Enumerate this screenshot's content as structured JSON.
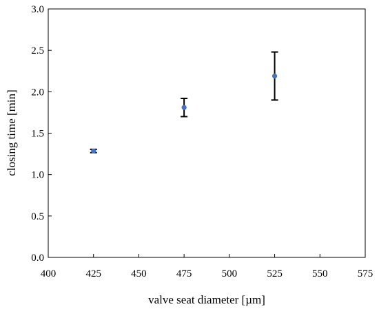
{
  "chart_data": {
    "type": "scatter",
    "title": "",
    "xlabel": "valve seat diameter [µm]",
    "ylabel": "closing time [min]",
    "xlim": [
      400,
      575
    ],
    "ylim": [
      0,
      3.0
    ],
    "xticks": [
      400,
      425,
      450,
      475,
      500,
      525,
      550,
      575
    ],
    "yticks": [
      0.0,
      0.5,
      1.0,
      1.5,
      2.0,
      2.5,
      3.0
    ],
    "xtick_labels": [
      "400",
      "425",
      "450",
      "475",
      "500",
      "525",
      "550",
      "575"
    ],
    "ytick_labels": [
      "0.0",
      "0.5",
      "1.0",
      "1.5",
      "2.0",
      "2.5",
      "3.0"
    ],
    "grid": false,
    "legend": "none",
    "series": [
      {
        "points": [
          {
            "x": 425,
            "y": 1.285,
            "err_low": 1.265,
            "err_high": 1.305
          },
          {
            "x": 475,
            "y": 1.81,
            "err_low": 1.7,
            "err_high": 1.92
          },
          {
            "x": 525,
            "y": 2.19,
            "err_low": 1.9,
            "err_high": 2.48
          }
        ],
        "color": "#4472C4",
        "error_bar_color": "#000000"
      }
    ]
  }
}
